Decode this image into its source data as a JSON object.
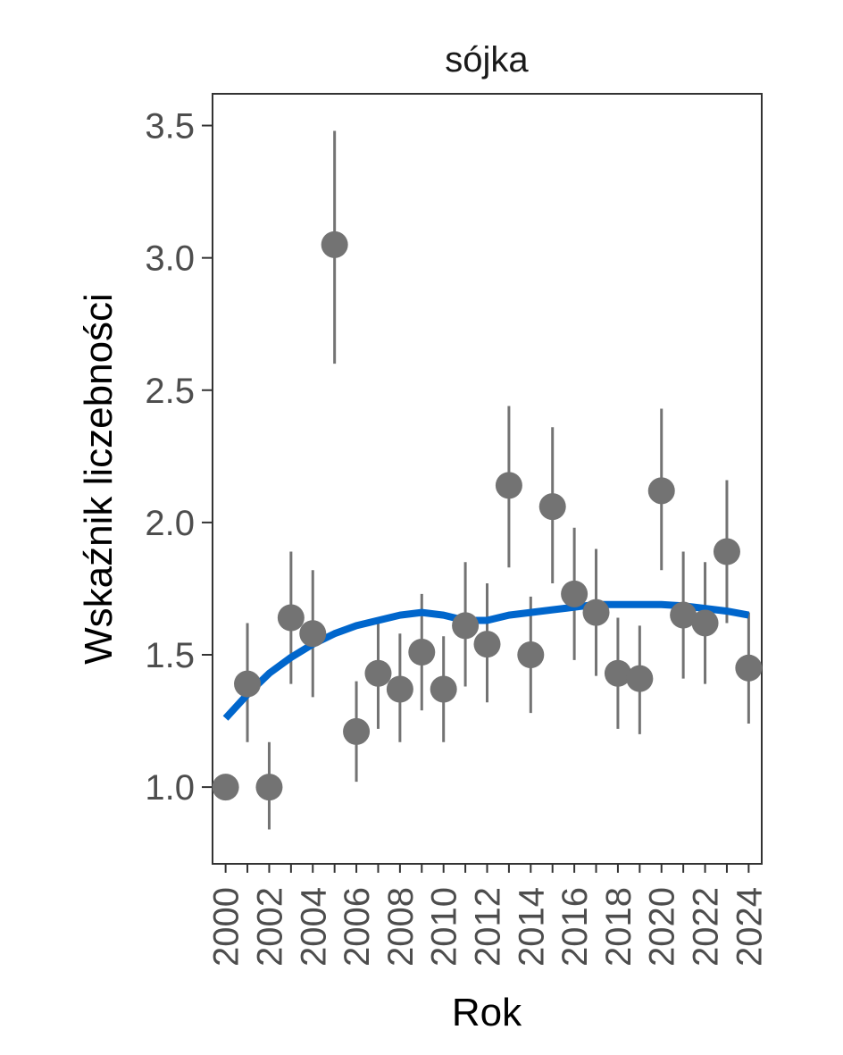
{
  "chart_data": {
    "type": "scatter",
    "title": "sójka",
    "xlabel": "Rok",
    "ylabel": "Wskaźnik liczebności",
    "xlim": [
      1999.4,
      2024.6
    ],
    "ylim": [
      0.71,
      3.62
    ],
    "x_ticks": [
      2000,
      2002,
      2004,
      2006,
      2008,
      2010,
      2012,
      2014,
      2016,
      2018,
      2020,
      2022,
      2024
    ],
    "x_tick_labels": [
      "2000",
      "2002",
      "2004",
      "2006",
      "2008",
      "2010",
      "2012",
      "2014",
      "2016",
      "2018",
      "2020",
      "2022",
      "2024"
    ],
    "y_ticks": [
      1.0,
      1.5,
      2.0,
      2.5,
      3.0,
      3.5
    ],
    "y_tick_labels": [
      "1.0",
      "1.5",
      "2.0",
      "2.5",
      "3.0",
      "3.5"
    ],
    "grid": false,
    "colors": {
      "points": "#737373",
      "errorbars": "#737373",
      "trend": "#0066cc",
      "axis": "#333333"
    },
    "points": [
      {
        "x": 2000,
        "y": 1.0,
        "lo": null,
        "hi": null
      },
      {
        "x": 2001,
        "y": 1.39,
        "lo": 1.17,
        "hi": 1.62
      },
      {
        "x": 2002,
        "y": 1.0,
        "lo": 0.84,
        "hi": 1.17
      },
      {
        "x": 2003,
        "y": 1.64,
        "lo": 1.39,
        "hi": 1.89
      },
      {
        "x": 2004,
        "y": 1.58,
        "lo": 1.34,
        "hi": 1.82
      },
      {
        "x": 2005,
        "y": 3.05,
        "lo": 2.6,
        "hi": 3.48
      },
      {
        "x": 2006,
        "y": 1.21,
        "lo": 1.02,
        "hi": 1.4
      },
      {
        "x": 2007,
        "y": 1.43,
        "lo": 1.22,
        "hi": 1.64
      },
      {
        "x": 2008,
        "y": 1.37,
        "lo": 1.17,
        "hi": 1.58
      },
      {
        "x": 2009,
        "y": 1.51,
        "lo": 1.29,
        "hi": 1.73
      },
      {
        "x": 2010,
        "y": 1.37,
        "lo": 1.17,
        "hi": 1.57
      },
      {
        "x": 2011,
        "y": 1.61,
        "lo": 1.38,
        "hi": 1.85
      },
      {
        "x": 2012,
        "y": 1.54,
        "lo": 1.32,
        "hi": 1.77
      },
      {
        "x": 2013,
        "y": 2.14,
        "lo": 1.83,
        "hi": 2.44
      },
      {
        "x": 2014,
        "y": 1.5,
        "lo": 1.28,
        "hi": 1.72
      },
      {
        "x": 2015,
        "y": 2.06,
        "lo": 1.77,
        "hi": 2.36
      },
      {
        "x": 2016,
        "y": 1.73,
        "lo": 1.48,
        "hi": 1.98
      },
      {
        "x": 2017,
        "y": 1.66,
        "lo": 1.42,
        "hi": 1.9
      },
      {
        "x": 2018,
        "y": 1.43,
        "lo": 1.22,
        "hi": 1.64
      },
      {
        "x": 2019,
        "y": 1.41,
        "lo": 1.2,
        "hi": 1.61
      },
      {
        "x": 2020,
        "y": 2.12,
        "lo": 1.82,
        "hi": 2.43
      },
      {
        "x": 2021,
        "y": 1.65,
        "lo": 1.41,
        "hi": 1.89
      },
      {
        "x": 2022,
        "y": 1.62,
        "lo": 1.39,
        "hi": 1.85
      },
      {
        "x": 2023,
        "y": 1.89,
        "lo": 1.62,
        "hi": 2.16
      },
      {
        "x": 2024,
        "y": 1.45,
        "lo": 1.24,
        "hi": 1.66
      }
    ],
    "trend": {
      "x": [
        2000,
        2001,
        2002,
        2003,
        2004,
        2005,
        2006,
        2007,
        2008,
        2009,
        2010,
        2011,
        2012,
        2013,
        2014,
        2015,
        2016,
        2017,
        2018,
        2019,
        2020,
        2021,
        2022,
        2023,
        2024
      ],
      "y": [
        1.26,
        1.35,
        1.43,
        1.49,
        1.54,
        1.58,
        1.61,
        1.63,
        1.65,
        1.66,
        1.65,
        1.63,
        1.63,
        1.65,
        1.66,
        1.67,
        1.68,
        1.69,
        1.69,
        1.69,
        1.69,
        1.685,
        1.675,
        1.665,
        1.65
      ]
    }
  }
}
